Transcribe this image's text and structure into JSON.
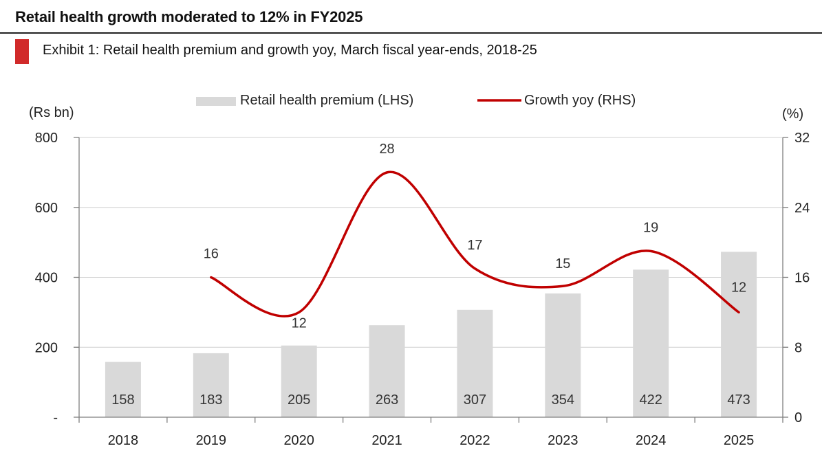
{
  "header": {
    "headline": "Retail health growth moderated to 12% in FY2025",
    "exhibit": "Exhibit 1: Retail health premium and growth yoy, March fiscal year-ends, 2018-25"
  },
  "colors": {
    "bar": "#d9d9d9",
    "line": "#c00000",
    "accent": "#d12a2a",
    "axis": "#7f7f7f"
  },
  "chart_data": {
    "type": "bar",
    "categories": [
      "2018",
      "2019",
      "2020",
      "2021",
      "2022",
      "2023",
      "2024",
      "2025"
    ],
    "series": [
      {
        "name": "Retail health premium (LHS)",
        "type": "bar",
        "axis": "left",
        "values": [
          158,
          183,
          205,
          263,
          307,
          354,
          422,
          473
        ]
      },
      {
        "name": "Growth yoy (RHS)",
        "type": "line",
        "axis": "right",
        "values": [
          null,
          16,
          12,
          28,
          17,
          15,
          19,
          12
        ]
      }
    ],
    "left_axis": {
      "label": "(Rs bn)",
      "ylim": [
        0,
        800
      ],
      "ticks": [
        0,
        200,
        400,
        600,
        800
      ],
      "tick_labels": [
        "-",
        "200",
        "400",
        "600",
        "800"
      ]
    },
    "right_axis": {
      "label": "(%)",
      "ylim": [
        0,
        32
      ],
      "ticks": [
        0,
        8,
        16,
        24,
        32
      ],
      "tick_labels": [
        "0",
        "8",
        "16",
        "24",
        "32"
      ]
    },
    "bar_labels": [
      "158",
      "183",
      "205",
      "263",
      "307",
      "354",
      "422",
      "473"
    ],
    "line_labels": [
      "",
      "16",
      "12",
      "28",
      "17",
      "15",
      "19",
      "12"
    ],
    "grid": true,
    "legend": "top-center"
  }
}
